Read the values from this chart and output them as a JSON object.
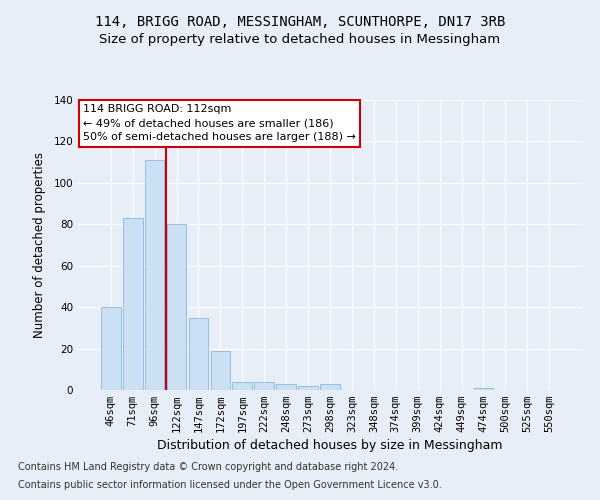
{
  "title": "114, BRIGG ROAD, MESSINGHAM, SCUNTHORPE, DN17 3RB",
  "subtitle": "Size of property relative to detached houses in Messingham",
  "xlabel": "Distribution of detached houses by size in Messingham",
  "ylabel": "Number of detached properties",
  "bar_labels": [
    "46sqm",
    "71sqm",
    "96sqm",
    "122sqm",
    "147sqm",
    "172sqm",
    "197sqm",
    "222sqm",
    "248sqm",
    "273sqm",
    "298sqm",
    "323sqm",
    "348sqm",
    "374sqm",
    "399sqm",
    "424sqm",
    "449sqm",
    "474sqm",
    "500sqm",
    "525sqm",
    "550sqm"
  ],
  "bar_values": [
    40,
    83,
    111,
    80,
    35,
    19,
    4,
    4,
    3,
    2,
    3,
    0,
    0,
    0,
    0,
    0,
    0,
    1,
    0,
    0,
    0
  ],
  "bar_color": "#cce0f5",
  "bar_edge_color": "#7ab0d4",
  "bar_edge_width": 0.5,
  "vline_index": 2,
  "vline_color": "#cc0000",
  "vline_label": "114 BRIGG ROAD: 112sqm",
  "annotation_line1": "← 49% of detached houses are smaller (186)",
  "annotation_line2": "50% of semi-detached houses are larger (188) →",
  "annotation_box_color": "#ffffff",
  "annotation_box_edge_color": "#cc0000",
  "ylim": [
    0,
    140
  ],
  "yticks": [
    0,
    20,
    40,
    60,
    80,
    100,
    120,
    140
  ],
  "bg_color": "#e8eef8",
  "plot_bg_color": "#e8eef8",
  "grid_color": "#ffffff",
  "footer_line1": "Contains HM Land Registry data © Crown copyright and database right 2024.",
  "footer_line2": "Contains public sector information licensed under the Open Government Licence v3.0.",
  "title_fontsize": 10,
  "subtitle_fontsize": 9.5,
  "xlabel_fontsize": 9,
  "ylabel_fontsize": 8.5,
  "tick_fontsize": 7.5,
  "footer_fontsize": 7,
  "annot_fontsize": 8
}
